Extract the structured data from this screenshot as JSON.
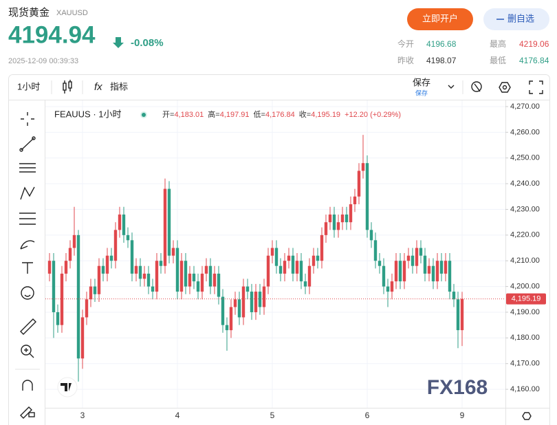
{
  "header": {
    "title": "现货黄金",
    "symbol": "XAUUSD",
    "price": "4194.94",
    "change": "-0.08%",
    "time": "2025-12-09 00:39:33",
    "buttons": {
      "open_account": "立即开户",
      "remove_watch": "删自选"
    },
    "stats": [
      {
        "label": "今开",
        "value": "4196.68"
      },
      {
        "label": "最高",
        "value": "4219.06"
      },
      {
        "label": "昨收",
        "value": "4198.07"
      },
      {
        "label": "最低",
        "value": "4176.84"
      }
    ]
  },
  "toolbar": {
    "interval": "1小时",
    "fx": "fx",
    "indicators": "指标",
    "save": "保存",
    "save_sub": "保存"
  },
  "chart_data": {
    "type": "candlestick",
    "title": "FEAUUS · 1小时",
    "ohlc_header": [
      {
        "label": "开=",
        "value": "4,183.01"
      },
      {
        "label": "高=",
        "value": "4,197.91"
      },
      {
        "label": "低=",
        "value": "4,176.84"
      },
      {
        "label": "收=",
        "value": "4,195.19"
      }
    ],
    "change_text": "+12.20 (+0.29%)",
    "watermark": "FX168",
    "categories": [
      null,
      null,
      null,
      null,
      null,
      null,
      null,
      null,
      "3",
      null,
      null,
      null,
      null,
      null,
      null,
      null,
      null,
      null,
      null,
      null,
      null,
      null,
      null,
      null,
      null,
      null,
      null,
      null,
      null,
      null,
      null,
      "4",
      null,
      null,
      null,
      null,
      null,
      null,
      null,
      null,
      null,
      null,
      null,
      null,
      null,
      null,
      null,
      null,
      null,
      null,
      null,
      null,
      null,
      null,
      "5",
      null,
      null,
      null,
      null,
      null,
      null,
      null,
      null,
      null,
      null,
      null,
      null,
      null,
      null,
      null,
      null,
      null,
      null,
      null,
      null,
      null,
      null,
      "6",
      null,
      null,
      null,
      null,
      null,
      null,
      null,
      null,
      null,
      null,
      null,
      null,
      null,
      null,
      null,
      null,
      null,
      null,
      null,
      null,
      null,
      null,
      "9"
    ],
    "open": [
      4205,
      4210,
      4190,
      4185,
      4205,
      4210,
      4215,
      4220,
      4172,
      4188,
      4195,
      4200,
      4197,
      4208,
      4205,
      4212,
      4210,
      4222,
      4228,
      4220,
      4218,
      4205,
      4208,
      4203,
      4205,
      4200,
      4198,
      4210,
      4208,
      4238,
      4212,
      4215,
      4198,
      4210,
      4200,
      4205,
      4202,
      4198,
      4205,
      4208,
      4200,
      4205,
      4196,
      4185,
      4183,
      4192,
      4195,
      4188,
      4200,
      4198,
      4190,
      4198,
      4192,
      4200,
      4212,
      4215,
      4208,
      4205,
      4210,
      4212,
      4205,
      4210,
      4202,
      4200,
      4208,
      4212,
      4210,
      4220,
      4225,
      4228,
      4222,
      4225,
      4228,
      4225,
      4232,
      4235,
      4245,
      4248,
      4222,
      4218,
      4210,
      4208,
      4200,
      4198,
      4202,
      4210,
      4202,
      4210,
      4212,
      4208,
      4215,
      4212,
      4205,
      4208,
      4202,
      4210,
      4205,
      4210,
      4198,
      4195,
      4183.01
    ],
    "high": [
      4213,
      4213,
      4193,
      4208,
      4213,
      4218,
      4231,
      4222,
      4191,
      4198,
      4203,
      4203,
      4211,
      4211,
      4215,
      4215,
      4225,
      4231,
      4231,
      4223,
      4221,
      4211,
      4211,
      4208,
      4208,
      4203,
      4213,
      4213,
      4242,
      4241,
      4218,
      4218,
      4213,
      4213,
      4208,
      4208,
      4205,
      4208,
      4211,
      4211,
      4208,
      4208,
      4199,
      4188,
      4195,
      4198,
      4198,
      4203,
      4203,
      4201,
      4201,
      4201,
      4203,
      4215,
      4218,
      4218,
      4211,
      4213,
      4215,
      4215,
      4213,
      4213,
      4205,
      4211,
      4215,
      4215,
      4223,
      4228,
      4231,
      4231,
      4228,
      4231,
      4231,
      4235,
      4238,
      4248,
      4259,
      4251,
      4225,
      4221,
      4213,
      4211,
      4203,
      4205,
      4213,
      4213,
      4213,
      4215,
      4215,
      4218,
      4218,
      4215,
      4211,
      4211,
      4213,
      4213,
      4213,
      4213,
      4201,
      4198,
      4197.91
    ],
    "low": [
      4202,
      4180,
      4182,
      4182,
      4202,
      4207,
      4212,
      4163,
      4168,
      4185,
      4192,
      4194,
      4194,
      4202,
      4202,
      4207,
      4207,
      4219,
      4217,
      4215,
      4202,
      4202,
      4200,
      4200,
      4197,
      4195,
      4195,
      4205,
      4205,
      4209,
      4209,
      4195,
      4195,
      4197,
      4197,
      4199,
      4195,
      4195,
      4202,
      4197,
      4197,
      4193,
      4182,
      4175,
      4180,
      4189,
      4185,
      4185,
      4195,
      4187,
      4187,
      4189,
      4189,
      4197,
      4209,
      4205,
      4202,
      4202,
      4207,
      4202,
      4202,
      4199,
      4197,
      4197,
      4205,
      4207,
      4207,
      4217,
      4222,
      4219,
      4219,
      4222,
      4222,
      4222,
      4229,
      4232,
      4242,
      4219,
      4215,
      4207,
      4205,
      4197,
      4192,
      4195,
      4199,
      4199,
      4199,
      4207,
      4205,
      4205,
      4209,
      4202,
      4202,
      4199,
      4199,
      4202,
      4202,
      4195,
      4192,
      4176,
      4176.84
    ],
    "close": [
      4210,
      4190,
      4185,
      4205,
      4210,
      4215,
      4220,
      4172,
      4188,
      4195,
      4200,
      4197,
      4208,
      4205,
      4212,
      4210,
      4222,
      4228,
      4220,
      4218,
      4205,
      4208,
      4203,
      4205,
      4200,
      4198,
      4210,
      4208,
      4238,
      4212,
      4215,
      4198,
      4210,
      4200,
      4205,
      4202,
      4198,
      4205,
      4208,
      4200,
      4205,
      4196,
      4185,
      4183,
      4192,
      4195,
      4188,
      4200,
      4198,
      4190,
      4198,
      4192,
      4200,
      4212,
      4215,
      4208,
      4205,
      4210,
      4212,
      4205,
      4210,
      4202,
      4200,
      4208,
      4212,
      4210,
      4220,
      4225,
      4228,
      4222,
      4225,
      4228,
      4225,
      4232,
      4235,
      4245,
      4248,
      4222,
      4218,
      4210,
      4208,
      4200,
      4198,
      4202,
      4210,
      4202,
      4210,
      4212,
      4208,
      4215,
      4212,
      4205,
      4208,
      4202,
      4210,
      4205,
      4210,
      4198,
      4195,
      4183.01,
      4195.19
    ],
    "up_color": "#e0474c",
    "down_color": "#2e9e86",
    "ylim": [
      4152.8,
      4272.4
    ],
    "yticks": [
      {
        "value": 4160,
        "label": "4,160.00"
      },
      {
        "value": 4170,
        "label": "4,170.00"
      },
      {
        "value": 4180,
        "label": "4,180.00"
      },
      {
        "value": 4190,
        "label": "4,190.00"
      },
      {
        "value": 4200,
        "label": "4,200.00"
      },
      {
        "value": 4210,
        "label": "4,210.00"
      },
      {
        "value": 4220,
        "label": "4,220.00"
      },
      {
        "value": 4230,
        "label": "4,230.00"
      },
      {
        "value": 4240,
        "label": "4,240.00"
      },
      {
        "value": 4250,
        "label": "4,250.00"
      },
      {
        "value": 4260,
        "label": "4,260.00"
      },
      {
        "value": 4270,
        "label": "4,270.00"
      }
    ],
    "last_price": {
      "value": 4195.19,
      "label": "4,195.19"
    },
    "grid": true
  }
}
